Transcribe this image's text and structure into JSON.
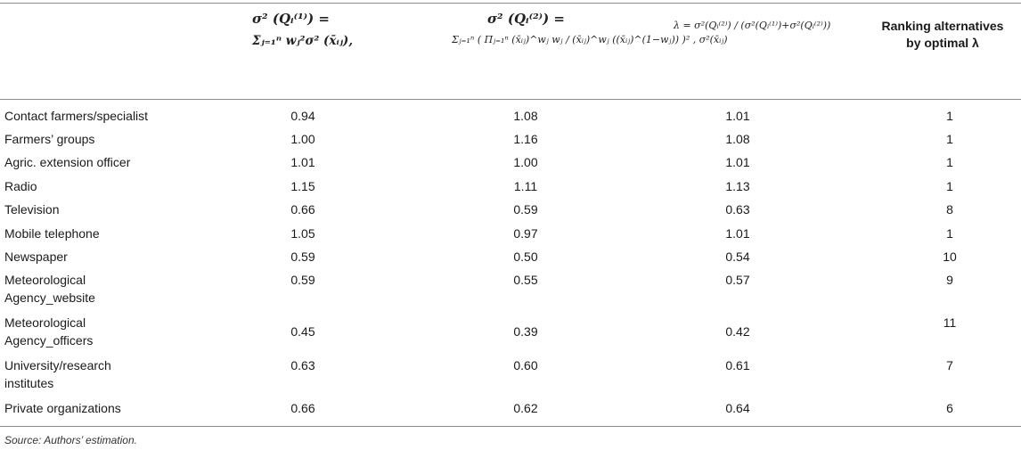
{
  "header": {
    "col1_line1": "σ² (Qᵢ⁽¹⁾) =",
    "col1_line2": "Σⱼ₌₁ⁿ wⱼ²σ² (x̄ᵢⱼ),",
    "col2_line1": "σ² (Qᵢ⁽²⁾) =",
    "col2_line2": "Σⱼ₌₁ⁿ ( Πⱼ₌₁ⁿ (x̄ᵢⱼ)^wⱼ wⱼ / (x̄ᵢⱼ)^wⱼ ((x̄ᵢⱼ)^(1−wⱼ)) )² , σ²(x̄ᵢⱼ)",
    "col3": "λ = σ²(Qᵢ⁽²⁾) / (σ²(Qᵢ⁽¹⁾)+σ²(Qᵢ⁽²⁾))",
    "col4_line1": "Ranking alternatives",
    "col4_line2": "by optimal λ"
  },
  "rows": [
    {
      "label": "Contact farmers/specialist",
      "v1": "0.94",
      "v2": "1.08",
      "v3": "1.01",
      "rank": "1"
    },
    {
      "label": "Farmers’ groups",
      "v1": "1.00",
      "v2": "1.16",
      "v3": "1.08",
      "rank": "1"
    },
    {
      "label": "Agric. extension officer",
      "v1": "1.01",
      "v2": "1.00",
      "v3": "1.01",
      "rank": "1"
    },
    {
      "label": "Radio",
      "v1": "1.15",
      "v2": "1.11",
      "v3": "1.13",
      "rank": "1"
    },
    {
      "label": "Television",
      "v1": "0.66",
      "v2": "0.59",
      "v3": "0.63",
      "rank": "8"
    },
    {
      "label": "Mobile telephone",
      "v1": "1.05",
      "v2": "0.97",
      "v3": "1.01",
      "rank": "1"
    },
    {
      "label": "Newspaper",
      "v1": "0.59",
      "v2": "0.50",
      "v3": "0.54",
      "rank": "10"
    },
    {
      "label": "Meteorological Agency_website",
      "v1": "0.59",
      "v2": "0.55",
      "v3": "0.57",
      "rank": "9"
    },
    {
      "label": "Meteorological Agency_officers",
      "v1": "0.45",
      "v2": "0.39",
      "v3": "0.42",
      "rank": "11"
    },
    {
      "label": "University/research institutes",
      "v1": "0.63",
      "v2": "0.60",
      "v3": "0.61",
      "rank": "7"
    },
    {
      "label": "Private organizations",
      "v1": "0.66",
      "v2": "0.62",
      "v3": "0.64",
      "rank": "6"
    }
  ],
  "source": "Source: Authors’ estimation."
}
